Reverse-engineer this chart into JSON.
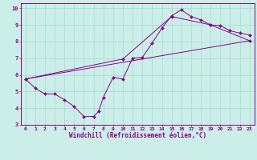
{
  "xlabel": "Windchill (Refroidissement éolien,°C)",
  "background_color": "#cceee8",
  "grid_color": "#aadddd",
  "line_color": "#880088",
  "xlim": [
    -0.5,
    23.5
  ],
  "ylim": [
    3,
    10.3
  ],
  "xticks": [
    0,
    1,
    2,
    3,
    4,
    5,
    6,
    7,
    8,
    9,
    10,
    11,
    12,
    13,
    14,
    15,
    16,
    17,
    18,
    19,
    20,
    21,
    22,
    23
  ],
  "yticks": [
    3,
    4,
    5,
    6,
    7,
    8,
    9,
    10
  ],
  "line1_x": [
    0,
    1,
    2,
    3,
    4,
    5,
    6,
    7,
    7.5,
    8,
    9,
    10,
    11,
    12,
    13,
    14,
    15,
    16,
    17,
    18,
    19,
    20,
    21,
    22,
    23
  ],
  "line1_y": [
    5.75,
    5.2,
    4.85,
    4.85,
    4.5,
    4.1,
    3.5,
    3.5,
    3.8,
    4.65,
    5.85,
    5.75,
    7.0,
    7.05,
    7.9,
    8.8,
    9.55,
    9.9,
    9.5,
    9.3,
    9.0,
    8.95,
    8.65,
    8.5,
    8.4
  ],
  "line2_x": [
    0,
    23
  ],
  "line2_y": [
    5.75,
    8.05
  ],
  "line3_x": [
    0,
    10,
    15,
    19,
    23
  ],
  "line3_y": [
    5.75,
    6.95,
    9.5,
    9.0,
    8.05
  ]
}
